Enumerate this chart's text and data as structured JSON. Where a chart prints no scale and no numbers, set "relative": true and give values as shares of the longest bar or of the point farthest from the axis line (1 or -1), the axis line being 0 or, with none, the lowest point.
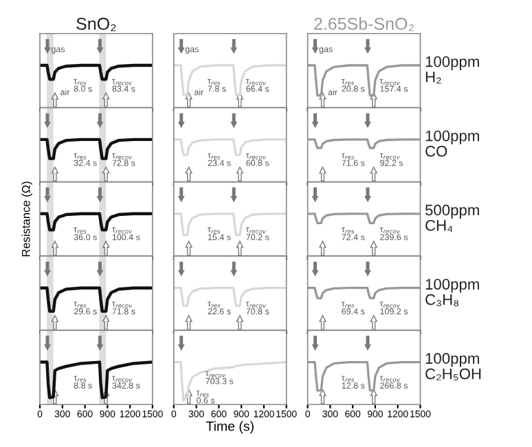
{
  "chart_data": [
    {
      "type": "line",
      "title": "SnO₂",
      "relative": true,
      "x": [
        0,
        95,
        110,
        130,
        180,
        200,
        250,
        350,
        550,
        795,
        810,
        830,
        880,
        900,
        950,
        1050,
        1250,
        1500
      ],
      "xlim": [
        0,
        1500
      ],
      "xticks": [
        0,
        300,
        600,
        900,
        1200,
        1500
      ],
      "tick_labels": false,
      "bands": [
        {
          "axis": "x",
          "from": 90,
          "to": 180,
          "color": "#dddddd"
        },
        {
          "axis": "x",
          "from": 790,
          "to": 880,
          "color": "#dddddd"
        }
      ],
      "series": [
        {
          "color": "#111111",
          "values": [
            1,
            1,
            0.84,
            0.67,
            0.67,
            0.84,
            0.93,
            0.98,
            1,
            1,
            0.84,
            0.67,
            0.67,
            0.84,
            0.93,
            0.98,
            1,
            1
          ]
        }
      ],
      "annotations": [
        "gas",
        "air",
        "τ$_{res}$\n8.0 s",
        "τ$_{recov}$\n83.4 s"
      ]
    },
    {
      "type": "line",
      "relative": true,
      "x": [
        0,
        95,
        110,
        130,
        180,
        200,
        250,
        350,
        550,
        795,
        810,
        830,
        880,
        900,
        950,
        1050,
        1250,
        1500
      ],
      "xlim": [
        0,
        1500
      ],
      "xticks": [
        0,
        300,
        600,
        900,
        1200,
        1500
      ],
      "tick_labels": false,
      "series": [
        {
          "color": "#d8d8d8",
          "values": [
            1,
            1,
            0.65,
            0.3,
            0.3,
            0.65,
            0.86,
            0.97,
            1,
            1,
            0.65,
            0.3,
            0.3,
            0.65,
            0.86,
            0.97,
            1,
            1
          ]
        }
      ],
      "annotations": [
        "gas",
        "air",
        "τ$_{res}$\n7.8 s",
        "τ$_{recov}$\n66.4 s"
      ]
    },
    {
      "type": "line",
      "title": "2.65Sb-SnO₂",
      "relative": true,
      "x": [
        0,
        95,
        110,
        130,
        180,
        200,
        250,
        350,
        550,
        795,
        810,
        830,
        880,
        900,
        950,
        1050,
        1250,
        1500
      ],
      "xlim": [
        0,
        1500
      ],
      "xticks": [
        0,
        300,
        600,
        900,
        1200,
        1500
      ],
      "tick_labels": false,
      "series": [
        {
          "color": "#999999",
          "values": [
            1,
            1,
            0.65,
            0.29,
            0.29,
            0.65,
            0.86,
            0.96,
            1,
            1,
            0.65,
            0.29,
            0.29,
            0.65,
            0.86,
            0.96,
            1,
            1
          ]
        }
      ],
      "annotations": [
        "gas",
        "air",
        "τ$_{res}$\n20.8 s",
        "τ$_{recov}$\n157.4 s",
        "100ppm\nH₂"
      ]
    },
    {
      "type": "line",
      "relative": true,
      "x": [
        0,
        95,
        110,
        130,
        180,
        200,
        250,
        350,
        550,
        795,
        810,
        830,
        880,
        900,
        950,
        1050,
        1250,
        1500
      ],
      "xlim": [
        0,
        1500
      ],
      "xticks": [
        0,
        300,
        600,
        900,
        1200,
        1500
      ],
      "tick_labels": false,
      "bands": [
        {
          "axis": "x",
          "from": 90,
          "to": 180,
          "color": "#dddddd"
        },
        {
          "axis": "x",
          "from": 790,
          "to": 880,
          "color": "#dddddd"
        }
      ],
      "series": [
        {
          "color": "#111111",
          "values": [
            1,
            1,
            0.78,
            0.55,
            0.55,
            0.78,
            0.91,
            0.98,
            1,
            1,
            0.78,
            0.55,
            0.55,
            0.78,
            0.91,
            0.98,
            1,
            1
          ]
        }
      ],
      "annotations": [
        "τ$_{res}$\n32.4 s",
        "τ$_{recov}$\n72.8 s"
      ]
    },
    {
      "type": "line",
      "relative": true,
      "x": [
        0,
        95,
        110,
        130,
        180,
        200,
        250,
        350,
        550,
        795,
        810,
        830,
        880,
        900,
        950,
        1050,
        1250,
        1500
      ],
      "xlim": [
        0,
        1500
      ],
      "xticks": [
        0,
        300,
        600,
        900,
        1200,
        1500
      ],
      "tick_labels": false,
      "series": [
        {
          "color": "#d8d8d8",
          "values": [
            1,
            1,
            0.82,
            0.64,
            0.64,
            0.82,
            0.93,
            0.98,
            1,
            1,
            0.82,
            0.64,
            0.64,
            0.82,
            0.93,
            0.98,
            1,
            1
          ]
        }
      ],
      "annotations": [
        "τ$_{res}$\n23.4 s",
        "τ$_{recov}$\n60.8 s"
      ]
    },
    {
      "type": "line",
      "relative": true,
      "x": [
        0,
        95,
        110,
        130,
        180,
        200,
        250,
        350,
        550,
        795,
        810,
        830,
        880,
        900,
        950,
        1050,
        1250,
        1500
      ],
      "xlim": [
        0,
        1500
      ],
      "xticks": [
        0,
        300,
        600,
        900,
        1200,
        1500
      ],
      "tick_labels": false,
      "series": [
        {
          "color": "#999999",
          "values": [
            1,
            1,
            0.9,
            0.8,
            0.8,
            0.9,
            0.96,
            0.99,
            1,
            1,
            0.9,
            0.8,
            0.8,
            0.9,
            0.96,
            0.99,
            1,
            1
          ]
        }
      ],
      "annotations": [
        "τ$_{res}$\n71.6 s",
        "τ$_{recov}$\n92.2 s",
        "100ppm\nCO"
      ]
    },
    {
      "type": "line",
      "ylabel": "Resistance (Ω)",
      "relative": true,
      "x": [
        0,
        95,
        110,
        130,
        180,
        200,
        250,
        350,
        550,
        795,
        810,
        830,
        880,
        900,
        950,
        1050,
        1250,
        1500
      ],
      "xlim": [
        0,
        1500
      ],
      "xticks": [
        0,
        300,
        600,
        900,
        1200,
        1500
      ],
      "tick_labels": false,
      "bands": [
        {
          "axis": "x",
          "from": 90,
          "to": 180,
          "color": "#dddddd"
        },
        {
          "axis": "x",
          "from": 790,
          "to": 880,
          "color": "#dddddd"
        }
      ],
      "series": [
        {
          "color": "#111111",
          "values": [
            1,
            1,
            0.81,
            0.62,
            0.62,
            0.81,
            0.92,
            0.98,
            1,
            1,
            0.81,
            0.62,
            0.62,
            0.81,
            0.92,
            0.98,
            1,
            1
          ]
        }
      ],
      "annotations": [
        "τ$_{res}$\n36.0 s",
        "τ$_{recov}$\n100.4 s"
      ]
    },
    {
      "type": "line",
      "relative": true,
      "x": [
        0,
        95,
        110,
        130,
        180,
        200,
        250,
        350,
        550,
        795,
        810,
        830,
        880,
        900,
        950,
        1050,
        1250,
        1500
      ],
      "xlim": [
        0,
        1500
      ],
      "xticks": [
        0,
        300,
        600,
        900,
        1200,
        1500
      ],
      "tick_labels": false,
      "series": [
        {
          "color": "#d8d8d8",
          "values": [
            1,
            1,
            0.75,
            0.5,
            0.5,
            0.75,
            0.9,
            0.98,
            1,
            1,
            0.75,
            0.5,
            0.5,
            0.75,
            0.9,
            0.98,
            1,
            1
          ]
        }
      ],
      "annotations": [
        "τ$_{res}$\n15.4 s",
        "τ$_{recov}$\n70.2 s"
      ]
    },
    {
      "type": "line",
      "relative": true,
      "x": [
        0,
        95,
        110,
        130,
        180,
        200,
        250,
        350,
        550,
        795,
        810,
        830,
        880,
        900,
        950,
        1050,
        1250,
        1500
      ],
      "xlim": [
        0,
        1500
      ],
      "xticks": [
        0,
        300,
        600,
        900,
        1200,
        1500
      ],
      "tick_labels": false,
      "series": [
        {
          "color": "#999999",
          "values": [
            1,
            1,
            0.89,
            0.78,
            0.78,
            0.89,
            0.96,
            0.99,
            1,
            1,
            0.89,
            0.78,
            0.78,
            0.89,
            0.96,
            0.99,
            1,
            1
          ]
        }
      ],
      "annotations": [
        "τ$_{res}$\n72.4 s",
        "τ$_{recov}$\n239.6 s",
        "500ppm\nCH₄"
      ]
    },
    {
      "type": "line",
      "relative": true,
      "x": [
        0,
        95,
        110,
        130,
        180,
        200,
        250,
        350,
        550,
        795,
        810,
        830,
        880,
        900,
        950,
        1050,
        1250,
        1500
      ],
      "xlim": [
        0,
        1500
      ],
      "xticks": [
        0,
        300,
        600,
        900,
        1200,
        1500
      ],
      "tick_labels": false,
      "bands": [
        {
          "axis": "x",
          "from": 90,
          "to": 180,
          "color": "#dddddd"
        },
        {
          "axis": "x",
          "from": 790,
          "to": 880,
          "color": "#dddddd"
        }
      ],
      "series": [
        {
          "color": "#111111",
          "values": [
            1,
            1,
            0.73,
            0.45,
            0.45,
            0.73,
            0.89,
            0.97,
            1,
            1,
            0.73,
            0.45,
            0.45,
            0.73,
            0.89,
            0.97,
            1,
            1
          ]
        }
      ],
      "annotations": [
        "τ$_{res}$\n29.6 s",
        "τ$_{recov}$\n71.8 s"
      ]
    },
    {
      "type": "line",
      "relative": true,
      "x": [
        0,
        95,
        110,
        130,
        180,
        200,
        250,
        350,
        550,
        795,
        810,
        830,
        880,
        900,
        950,
        1050,
        1250,
        1500
      ],
      "xlim": [
        0,
        1500
      ],
      "xticks": [
        0,
        300,
        600,
        900,
        1200,
        1500
      ],
      "tick_labels": false,
      "series": [
        {
          "color": "#d8d8d8",
          "values": [
            1,
            1,
            0.79,
            0.58,
            0.58,
            0.79,
            0.92,
            0.98,
            1,
            1,
            0.79,
            0.58,
            0.58,
            0.79,
            0.92,
            0.98,
            1,
            1
          ]
        }
      ],
      "annotations": [
        "τ$_{res}$\n22.6 s",
        "τ$_{recov}$\n70.8 s"
      ]
    },
    {
      "type": "line",
      "relative": true,
      "x": [
        0,
        95,
        110,
        130,
        180,
        200,
        250,
        350,
        550,
        795,
        810,
        830,
        880,
        900,
        950,
        1050,
        1250,
        1500
      ],
      "xlim": [
        0,
        1500
      ],
      "xticks": [
        0,
        300,
        600,
        900,
        1200,
        1500
      ],
      "tick_labels": false,
      "series": [
        {
          "color": "#999999",
          "values": [
            1,
            1,
            0.88,
            0.76,
            0.76,
            0.88,
            0.95,
            0.99,
            1,
            1,
            0.88,
            0.76,
            0.76,
            0.88,
            0.95,
            0.99,
            1,
            1
          ]
        }
      ],
      "annotations": [
        "τ$_{res}$\n69.4 s",
        "τ$_{recov}$\n109.2 s",
        "100ppm\nC₃H₈"
      ]
    },
    {
      "type": "line",
      "relative": true,
      "x": [
        0,
        95,
        110,
        130,
        180,
        200,
        250,
        350,
        550,
        795,
        810,
        830,
        880,
        900,
        950,
        1050,
        1250,
        1500
      ],
      "xlim": [
        0,
        1500
      ],
      "xticks": [
        0,
        300,
        600,
        900,
        1200,
        1500
      ],
      "tick_labels": "x",
      "bands": [
        {
          "axis": "x",
          "from": 90,
          "to": 180,
          "color": "#dddddd"
        },
        {
          "axis": "x",
          "from": 790,
          "to": 880,
          "color": "#dddddd"
        }
      ],
      "series": [
        {
          "color": "#111111",
          "values": [
            1,
            1,
            0.5,
            0.16,
            0.18,
            0.8,
            0.85,
            0.9,
            0.97,
            1,
            0.5,
            0.16,
            0.18,
            0.8,
            0.85,
            0.9,
            0.97,
            1
          ]
        }
      ],
      "annotations": [
        "τ$_{res}$\n8.8 s",
        "τ$_{recov}$\n342.8 s"
      ]
    },
    {
      "type": "line",
      "xlabel": "Time (s)",
      "relative": true,
      "x": [
        0,
        95,
        110,
        130,
        180,
        200,
        250,
        350,
        550,
        795,
        810,
        830,
        880,
        900,
        950,
        1050,
        1250,
        1500
      ],
      "xlim": [
        0,
        1500
      ],
      "xticks": [
        0,
        300,
        600,
        900,
        1200,
        1500
      ],
      "tick_labels": "x",
      "series": [
        {
          "color": "#d8d8d8",
          "values": [
            1,
            1,
            0.5,
            0.09,
            0.2,
            0.45,
            0.65,
            0.75,
            0.85,
            0.88,
            0.9,
            0.91,
            0.92,
            0.93,
            0.94,
            0.95,
            0.97,
            1
          ]
        }
      ],
      "annotations": [
        "τ$_{res}$\n0.6 s",
        "τ$_{recov}$\n703.3 s"
      ]
    },
    {
      "type": "line",
      "relative": true,
      "x": [
        0,
        95,
        110,
        130,
        180,
        200,
        250,
        350,
        550,
        795,
        810,
        830,
        880,
        900,
        950,
        1050,
        1250,
        1500
      ],
      "xlim": [
        0,
        1500
      ],
      "xticks": [
        0,
        300,
        600,
        900,
        1200,
        1500
      ],
      "tick_labels": "x",
      "series": [
        {
          "color": "#999999",
          "values": [
            1,
            1,
            0.67,
            0.33,
            0.33,
            0.67,
            0.87,
            0.97,
            1,
            1,
            0.67,
            0.33,
            0.33,
            0.67,
            0.87,
            0.97,
            1,
            1
          ]
        }
      ],
      "annotations": [
        "τ$_{res}$\n12.8 s",
        "τ$_{recov}$\n266.8 s",
        "100ppm\nC₂H₅OH"
      ]
    }
  ]
}
